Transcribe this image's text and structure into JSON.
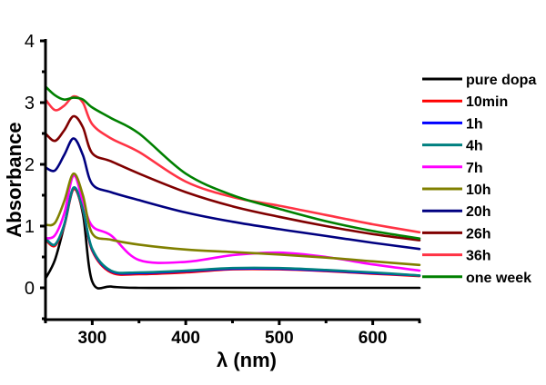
{
  "chart_data": {
    "type": "line",
    "title": "",
    "xlabel": "λ (nm)",
    "ylabel": "Absorbance",
    "xlim": [
      250,
      650
    ],
    "ylim": [
      -0.5,
      4
    ],
    "xticks": [
      300,
      400,
      500,
      600
    ],
    "xtick_labels": [
      "300",
      "400",
      "500",
      "600"
    ],
    "yticks": [
      0,
      1,
      2,
      3,
      4
    ],
    "ytick_labels": [
      "0",
      "1",
      "2",
      "3",
      "4"
    ],
    "grid": false,
    "legend_position": "right",
    "x": [
      250,
      260,
      270,
      280,
      290,
      300,
      320,
      350,
      400,
      450,
      500,
      550,
      600,
      650
    ],
    "series": [
      {
        "name": "pure dopa",
        "color": "#000000",
        "values": [
          0.15,
          0.45,
          1.0,
          1.6,
          1.2,
          0.1,
          0.02,
          0.0,
          0.0,
          0.0,
          0.0,
          0.0,
          0.0,
          0.0
        ]
      },
      {
        "name": "10min",
        "color": "#ff0000",
        "values": [
          0.78,
          0.68,
          1.0,
          1.6,
          1.25,
          0.6,
          0.25,
          0.22,
          0.25,
          0.3,
          0.3,
          0.27,
          0.23,
          0.19
        ]
      },
      {
        "name": "1h",
        "color": "#0000ff",
        "values": [
          0.8,
          0.7,
          1.02,
          1.62,
          1.27,
          0.62,
          0.27,
          0.24,
          0.27,
          0.31,
          0.31,
          0.28,
          0.24,
          0.2
        ]
      },
      {
        "name": "4h",
        "color": "#008080",
        "values": [
          0.8,
          0.7,
          1.02,
          1.62,
          1.27,
          0.63,
          0.28,
          0.25,
          0.28,
          0.32,
          0.32,
          0.29,
          0.25,
          0.2
        ]
      },
      {
        "name": "7h",
        "color": "#ff00ff",
        "values": [
          0.8,
          0.85,
          1.2,
          1.82,
          1.4,
          1.0,
          0.85,
          0.45,
          0.42,
          0.53,
          0.57,
          0.5,
          0.38,
          0.28
        ]
      },
      {
        "name": "10h",
        "color": "#808000",
        "values": [
          1.02,
          1.05,
          1.4,
          1.85,
          1.5,
          0.88,
          0.78,
          0.7,
          0.62,
          0.58,
          0.54,
          0.49,
          0.43,
          0.37
        ]
      },
      {
        "name": "20h",
        "color": "#000080",
        "values": [
          1.95,
          1.9,
          2.15,
          2.42,
          2.15,
          1.68,
          1.55,
          1.42,
          1.22,
          1.07,
          0.95,
          0.84,
          0.73,
          0.63
        ]
      },
      {
        "name": "26h",
        "color": "#800000",
        "values": [
          2.5,
          2.38,
          2.55,
          2.78,
          2.6,
          2.18,
          2.05,
          1.85,
          1.55,
          1.32,
          1.15,
          1.0,
          0.87,
          0.77
        ]
      },
      {
        "name": "36h",
        "color": "#ff3344",
        "values": [
          3.05,
          2.88,
          2.95,
          3.1,
          3.0,
          2.65,
          2.42,
          2.2,
          1.72,
          1.47,
          1.33,
          1.18,
          1.03,
          0.9
        ]
      },
      {
        "name": "one week",
        "color": "#008000",
        "values": [
          3.26,
          3.12,
          3.05,
          3.08,
          3.05,
          2.92,
          2.75,
          2.5,
          1.85,
          1.5,
          1.28,
          1.08,
          0.92,
          0.8
        ]
      }
    ]
  }
}
